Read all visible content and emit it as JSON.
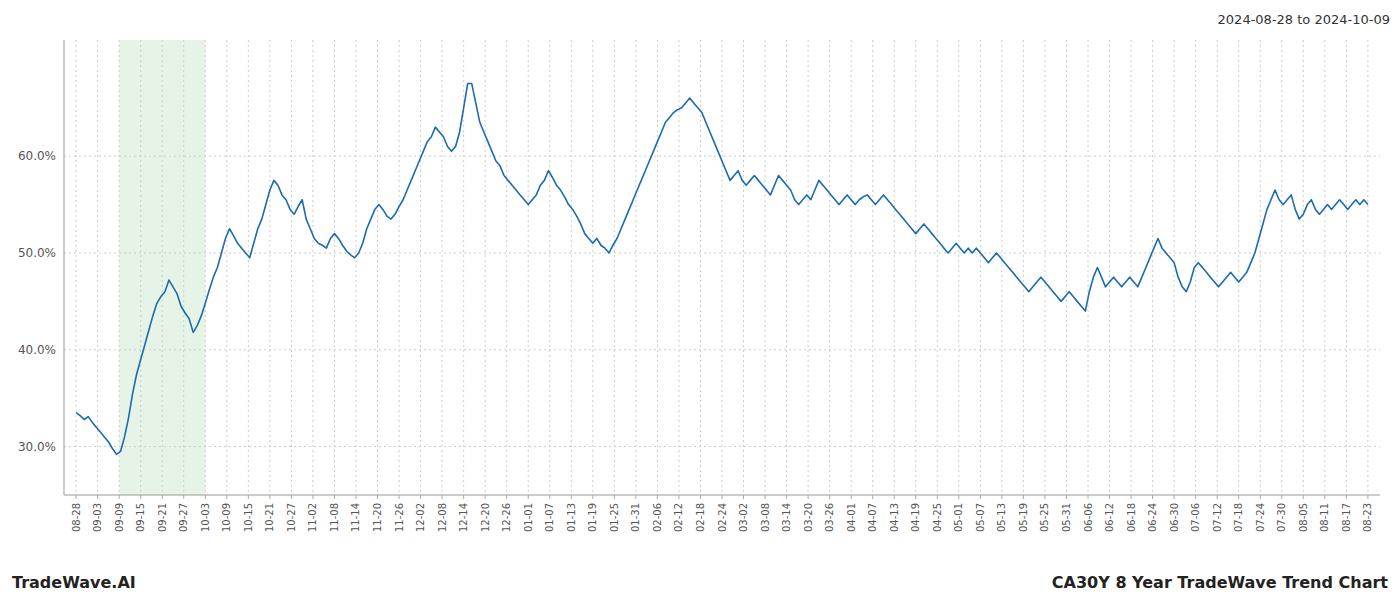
{
  "chart_data": {
    "type": "line",
    "title": "CA30Y 8 Year TradeWave Trend Chart",
    "subtitle": "2024-08-28 to 2024-10-09",
    "annotations": [
      "TradeWave.AI"
    ],
    "color": "#1c6bb0",
    "grid": true,
    "ylim": [
      25.0,
      72.0
    ],
    "yticks": [
      {
        "value": 30.0,
        "label": "30.0%"
      },
      {
        "value": 40.0,
        "label": "40.0%"
      },
      {
        "value": 50.0,
        "label": "50.0%"
      },
      {
        "value": 60.0,
        "label": "60.0%"
      }
    ],
    "xticks": [
      "08-28",
      "09-03",
      "09-09",
      "09-15",
      "09-21",
      "09-27",
      "10-03",
      "10-09",
      "10-15",
      "10-21",
      "10-27",
      "11-02",
      "11-08",
      "11-14",
      "11-20",
      "11-26",
      "12-02",
      "12-08",
      "12-14",
      "12-20",
      "12-26",
      "01-01",
      "01-07",
      "01-13",
      "01-19",
      "01-25",
      "01-31",
      "02-06",
      "02-12",
      "02-18",
      "02-24",
      "03-02",
      "03-08",
      "03-14",
      "03-20",
      "03-26",
      "04-01",
      "04-07",
      "04-13",
      "04-19",
      "04-25",
      "05-01",
      "05-07",
      "05-13",
      "05-19",
      "05-25",
      "05-31",
      "06-06",
      "06-12",
      "06-18",
      "06-24",
      "06-30",
      "07-06",
      "07-12",
      "07-18",
      "07-24",
      "07-30",
      "08-05",
      "08-11",
      "08-17",
      "08-23"
    ],
    "shade": {
      "start": "09-09",
      "end": "10-03",
      "color": "#c8e6c9"
    },
    "values": [
      33.5,
      33.2,
      32.8,
      33.1,
      32.5,
      32.0,
      31.5,
      31.0,
      30.5,
      29.8,
      29.2,
      29.5,
      31.0,
      33.0,
      35.5,
      37.5,
      39.0,
      40.5,
      42.0,
      43.5,
      44.8,
      45.5,
      46.0,
      47.2,
      46.5,
      45.8,
      44.5,
      43.8,
      43.2,
      41.8,
      42.5,
      43.5,
      44.8,
      46.2,
      47.5,
      48.5,
      50.0,
      51.5,
      52.5,
      51.8,
      51.0,
      50.5,
      50.0,
      49.5,
      51.0,
      52.5,
      53.5,
      55.0,
      56.5,
      57.5,
      57.0,
      56.0,
      55.5,
      54.5,
      54.0,
      54.8,
      55.5,
      53.5,
      52.5,
      51.5,
      51.0,
      50.8,
      50.5,
      51.5,
      52.0,
      51.5,
      50.8,
      50.2,
      49.8,
      49.5,
      50.0,
      51.0,
      52.5,
      53.5,
      54.5,
      55.0,
      54.5,
      53.8,
      53.5,
      54.0,
      54.8,
      55.5,
      56.5,
      57.5,
      58.5,
      59.5,
      60.5,
      61.5,
      62.0,
      63.0,
      62.5,
      62.0,
      61.0,
      60.5,
      61.0,
      62.5,
      65.0,
      67.5,
      67.5,
      65.5,
      63.5,
      62.5,
      61.5,
      60.5,
      59.5,
      59.0,
      58.0,
      57.5,
      57.0,
      56.5,
      56.0,
      55.5,
      55.0,
      55.5,
      56.0,
      57.0,
      57.5,
      58.5,
      57.8,
      57.0,
      56.5,
      55.8,
      55.0,
      54.5,
      53.8,
      53.0,
      52.0,
      51.5,
      51.0,
      51.5,
      50.8,
      50.5,
      50.0,
      50.8,
      51.5,
      52.5,
      53.5,
      54.5,
      55.5,
      56.5,
      57.5,
      58.5,
      59.5,
      60.5,
      61.5,
      62.5,
      63.5,
      64.0,
      64.5,
      64.8,
      65.0,
      65.5,
      66.0,
      65.5,
      65.0,
      64.5,
      63.5,
      62.5,
      61.5,
      60.5,
      59.5,
      58.5,
      57.5,
      58.0,
      58.5,
      57.5,
      57.0,
      57.5,
      58.0,
      57.5,
      57.0,
      56.5,
      56.0,
      57.0,
      58.0,
      57.5,
      57.0,
      56.5,
      55.5,
      55.0,
      55.5,
      56.0,
      55.5,
      56.5,
      57.5,
      57.0,
      56.5,
      56.0,
      55.5,
      55.0,
      55.5,
      56.0,
      55.5,
      55.0,
      55.5,
      55.8,
      56.0,
      55.5,
      55.0,
      55.5,
      56.0,
      55.5,
      55.0,
      54.5,
      54.0,
      53.5,
      53.0,
      52.5,
      52.0,
      52.5,
      53.0,
      52.5,
      52.0,
      51.5,
      51.0,
      50.5,
      50.0,
      50.5,
      51.0,
      50.5,
      50.0,
      50.5,
      50.0,
      50.5,
      50.0,
      49.5,
      49.0,
      49.5,
      50.0,
      49.5,
      49.0,
      48.5,
      48.0,
      47.5,
      47.0,
      46.5,
      46.0,
      46.5,
      47.0,
      47.5,
      47.0,
      46.5,
      46.0,
      45.5,
      45.0,
      45.5,
      46.0,
      45.5,
      45.0,
      44.5,
      44.0,
      46.0,
      47.5,
      48.5,
      47.5,
      46.5,
      47.0,
      47.5,
      47.0,
      46.5,
      47.0,
      47.5,
      47.0,
      46.5,
      47.5,
      48.5,
      49.5,
      50.5,
      51.5,
      50.5,
      50.0,
      49.5,
      49.0,
      47.5,
      46.5,
      46.0,
      47.0,
      48.5,
      49.0,
      48.5,
      48.0,
      47.5,
      47.0,
      46.5,
      47.0,
      47.5,
      48.0,
      47.5,
      47.0,
      47.5,
      48.0,
      49.0,
      50.0,
      51.5,
      53.0,
      54.5,
      55.5,
      56.5,
      55.5,
      55.0,
      55.5,
      56.0,
      54.5,
      53.5,
      54.0,
      55.0,
      55.5,
      54.5,
      54.0,
      54.5,
      55.0,
      54.5,
      55.0,
      55.5,
      55.0,
      54.5,
      55.0,
      55.5,
      55.0,
      55.5,
      55.0
    ]
  }
}
